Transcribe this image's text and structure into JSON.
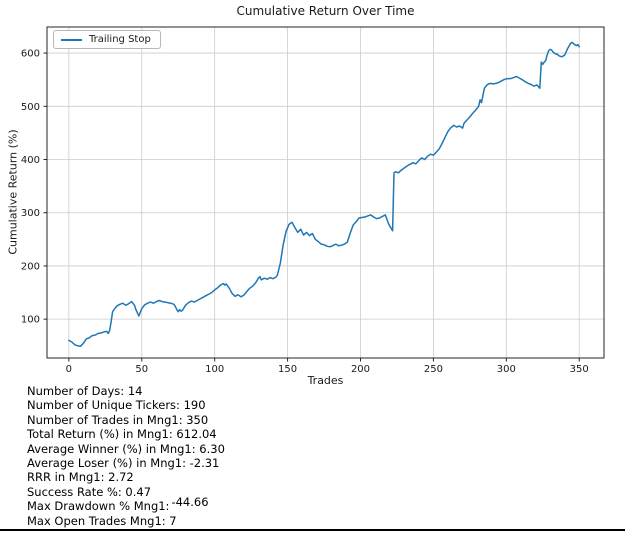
{
  "colors": {
    "line": "#1f77b4",
    "grid": "#cccccc",
    "spine": "#262626",
    "text": "#1a1a1a",
    "bottom_rule": "#000000"
  },
  "chart_data": {
    "type": "line",
    "title": "Cumulative Return Over Time",
    "xlabel": "Trades",
    "ylabel": "Cumulative Return (%)",
    "grid": true,
    "legend_position": "upper left",
    "xlim": [
      -15,
      367
    ],
    "ylim": [
      27,
      649
    ],
    "xticks": [
      0,
      50,
      100,
      150,
      200,
      250,
      300,
      350
    ],
    "yticks": [
      100,
      200,
      300,
      400,
      500,
      600
    ],
    "series": [
      {
        "name": "Trailing Stop",
        "color": "#1f77b4",
        "points": [
          [
            0,
            60
          ],
          [
            2,
            57
          ],
          [
            4,
            52
          ],
          [
            6,
            50
          ],
          [
            8,
            49
          ],
          [
            10,
            55
          ],
          [
            12,
            63
          ],
          [
            14,
            65
          ],
          [
            16,
            69
          ],
          [
            18,
            70
          ],
          [
            20,
            73
          ],
          [
            22,
            74
          ],
          [
            24,
            76
          ],
          [
            26,
            77
          ],
          [
            27,
            73
          ],
          [
            28,
            79
          ],
          [
            29,
            96
          ],
          [
            30,
            114
          ],
          [
            31,
            118
          ],
          [
            33,
            125
          ],
          [
            35,
            128
          ],
          [
            37,
            130
          ],
          [
            39,
            126
          ],
          [
            41,
            129
          ],
          [
            43,
            133
          ],
          [
            45,
            126
          ],
          [
            46,
            118
          ],
          [
            48,
            106
          ],
          [
            50,
            120
          ],
          [
            52,
            127
          ],
          [
            54,
            130
          ],
          [
            56,
            132
          ],
          [
            58,
            130
          ],
          [
            60,
            133
          ],
          [
            62,
            135
          ],
          [
            64,
            133
          ],
          [
            66,
            132
          ],
          [
            68,
            131
          ],
          [
            70,
            130
          ],
          [
            72,
            128
          ],
          [
            73,
            124
          ],
          [
            74,
            118
          ],
          [
            75,
            114
          ],
          [
            76,
            118
          ],
          [
            77,
            115
          ],
          [
            78,
            117
          ],
          [
            80,
            126
          ],
          [
            82,
            131
          ],
          [
            84,
            134
          ],
          [
            86,
            132
          ],
          [
            88,
            135
          ],
          [
            90,
            138
          ],
          [
            92,
            141
          ],
          [
            94,
            144
          ],
          [
            96,
            147
          ],
          [
            98,
            150
          ],
          [
            100,
            155
          ],
          [
            102,
            159
          ],
          [
            104,
            164
          ],
          [
            106,
            167
          ],
          [
            107,
            164
          ],
          [
            108,
            166
          ],
          [
            110,
            158
          ],
          [
            112,
            148
          ],
          [
            114,
            143
          ],
          [
            116,
            146
          ],
          [
            118,
            142
          ],
          [
            120,
            145
          ],
          [
            122,
            152
          ],
          [
            124,
            158
          ],
          [
            126,
            162
          ],
          [
            128,
            168
          ],
          [
            130,
            177
          ],
          [
            131,
            180
          ],
          [
            132,
            174
          ],
          [
            134,
            177
          ],
          [
            136,
            175
          ],
          [
            138,
            178
          ],
          [
            140,
            176
          ],
          [
            142,
            179
          ],
          [
            143,
            183
          ],
          [
            145,
            205
          ],
          [
            147,
            240
          ],
          [
            149,
            265
          ],
          [
            151,
            278
          ],
          [
            153,
            282
          ],
          [
            155,
            272
          ],
          [
            157,
            263
          ],
          [
            159,
            269
          ],
          [
            161,
            258
          ],
          [
            163,
            263
          ],
          [
            165,
            257
          ],
          [
            167,
            261
          ],
          [
            169,
            250
          ],
          [
            171,
            246
          ],
          [
            173,
            241
          ],
          [
            175,
            240
          ],
          [
            177,
            237
          ],
          [
            179,
            236
          ],
          [
            181,
            238
          ],
          [
            183,
            241
          ],
          [
            185,
            238
          ],
          [
            187,
            239
          ],
          [
            189,
            241
          ],
          [
            191,
            245
          ],
          [
            193,
            262
          ],
          [
            195,
            277
          ],
          [
            197,
            283
          ],
          [
            199,
            290
          ],
          [
            201,
            291
          ],
          [
            203,
            292
          ],
          [
            205,
            294
          ],
          [
            207,
            296
          ],
          [
            209,
            292
          ],
          [
            211,
            289
          ],
          [
            213,
            290
          ],
          [
            215,
            293
          ],
          [
            217,
            296
          ],
          [
            219,
            281
          ],
          [
            220,
            275
          ],
          [
            221,
            271
          ],
          [
            222,
            266
          ],
          [
            223,
            375
          ],
          [
            224,
            377
          ],
          [
            226,
            375
          ],
          [
            228,
            380
          ],
          [
            230,
            384
          ],
          [
            232,
            388
          ],
          [
            234,
            391
          ],
          [
            236,
            394
          ],
          [
            238,
            392
          ],
          [
            240,
            398
          ],
          [
            242,
            403
          ],
          [
            244,
            400
          ],
          [
            246,
            406
          ],
          [
            248,
            410
          ],
          [
            250,
            408
          ],
          [
            252,
            414
          ],
          [
            254,
            420
          ],
          [
            256,
            430
          ],
          [
            258,
            442
          ],
          [
            260,
            453
          ],
          [
            262,
            460
          ],
          [
            264,
            464
          ],
          [
            266,
            461
          ],
          [
            268,
            463
          ],
          [
            270,
            459
          ],
          [
            271,
            468
          ],
          [
            273,
            474
          ],
          [
            275,
            480
          ],
          [
            277,
            487
          ],
          [
            279,
            493
          ],
          [
            281,
            500
          ],
          [
            282,
            512
          ],
          [
            283,
            507
          ],
          [
            285,
            534
          ],
          [
            287,
            541
          ],
          [
            289,
            543
          ],
          [
            291,
            542
          ],
          [
            293,
            543
          ],
          [
            295,
            545
          ],
          [
            297,
            548
          ],
          [
            299,
            551
          ],
          [
            301,
            552
          ],
          [
            303,
            552
          ],
          [
            305,
            554
          ],
          [
            307,
            556
          ],
          [
            309,
            553
          ],
          [
            311,
            550
          ],
          [
            313,
            546
          ],
          [
            315,
            543
          ],
          [
            317,
            541
          ],
          [
            319,
            538
          ],
          [
            321,
            540
          ],
          [
            322,
            537
          ],
          [
            323,
            534
          ],
          [
            324,
            583
          ],
          [
            325,
            579
          ],
          [
            326,
            583
          ],
          [
            327,
            586
          ],
          [
            328,
            596
          ],
          [
            329,
            604
          ],
          [
            330,
            607
          ],
          [
            331,
            606
          ],
          [
            332,
            602
          ],
          [
            333,
            600
          ],
          [
            334,
            598
          ],
          [
            335,
            598
          ],
          [
            336,
            595
          ],
          [
            337,
            594
          ],
          [
            338,
            593
          ],
          [
            340,
            596
          ],
          [
            341,
            602
          ],
          [
            342,
            608
          ],
          [
            343,
            613
          ],
          [
            344,
            618
          ],
          [
            345,
            620
          ],
          [
            346,
            618
          ],
          [
            347,
            616
          ],
          [
            348,
            614
          ],
          [
            349,
            616
          ],
          [
            350,
            612
          ]
        ]
      }
    ]
  },
  "stats": {
    "items": [
      {
        "text": "Number of Days: 14"
      },
      {
        "text": "Number of Unique Tickers: 190"
      },
      {
        "text": "Number of Trades in Mng1: 350"
      },
      {
        "text": "Total Return (%) in Mng1: 612.04"
      },
      {
        "text": "Average Winner (%) in Mng1: 6.30"
      },
      {
        "text": "Average Loser (%) in Mng1: -2.31"
      },
      {
        "text": "RRR in Mng1: 2.72"
      },
      {
        "text": "Success Rate %: 0.47"
      },
      {
        "text": "Max Drawdown % Mng1:",
        "raised": "-44.66"
      },
      {
        "text": "Max Open Trades Mng1: 7"
      }
    ]
  }
}
